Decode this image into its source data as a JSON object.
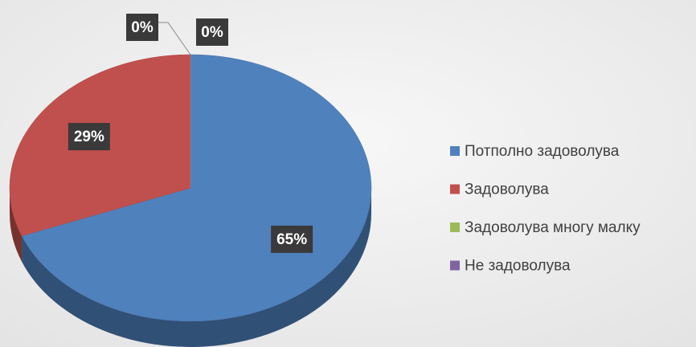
{
  "chart_data": {
    "type": "pie",
    "categories": [
      "Потполно задоволува",
      "Задоволува",
      "Задоволува многу малку",
      "Не задоволува"
    ],
    "values": [
      65,
      29,
      0,
      0
    ],
    "value_labels": [
      "65%",
      "29%",
      "0%",
      "0%"
    ],
    "colors": [
      "#4f81bd",
      "#c0504d",
      "#9bbb59",
      "#8064a2"
    ],
    "legend": "right"
  }
}
